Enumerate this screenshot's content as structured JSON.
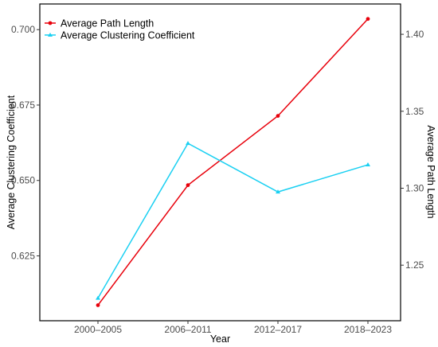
{
  "chart_data": {
    "type": "line",
    "categories": [
      "2000–2005",
      "2006–2011",
      "2012–2017",
      "2018–2023"
    ],
    "xlabel": "Year",
    "ylabel_left": "Average Clustering Coefficient",
    "ylabel_right": "Average Path Length",
    "left_ticks": [
      "0.625",
      "0.650",
      "0.675",
      "0.700"
    ],
    "right_ticks": [
      "1.25",
      "1.30",
      "1.35",
      "1.40"
    ],
    "left_ylim": [
      0.6035,
      0.7085
    ],
    "right_ylim": [
      1.2139,
      1.4197
    ],
    "legend_position": "top-left",
    "grid": false,
    "series": [
      {
        "name": "Average Path Length",
        "axis": "right",
        "color": "#e8000b",
        "marker": "circle",
        "values": [
          1.224,
          1.302,
          1.347,
          1.41
        ]
      },
      {
        "name": "Average Clustering Coefficient",
        "axis": "left",
        "color": "#1ad0f2",
        "marker": "triangle",
        "values": [
          0.611,
          0.6623,
          0.6462,
          0.6552
        ]
      }
    ]
  }
}
